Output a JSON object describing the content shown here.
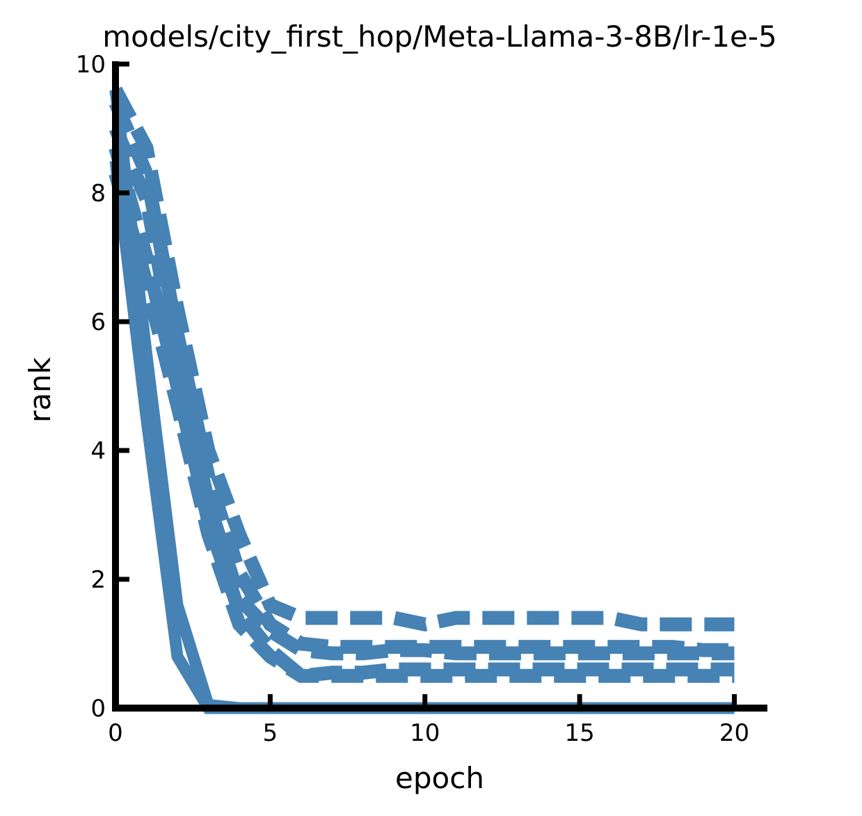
{
  "chart_data": {
    "type": "line",
    "title": "models/city_first_hop/Meta-Llama-3-8B/lr-1e-5",
    "xlabel": "epoch",
    "ylabel": "rank",
    "xlim": [
      0,
      21
    ],
    "ylim": [
      0,
      10
    ],
    "xticks": [
      "0",
      "5",
      "10",
      "15",
      "20"
    ],
    "yticks": [
      "0",
      "2",
      "4",
      "6",
      "8",
      "10"
    ],
    "grid": false,
    "legend": "none",
    "color": "#4682b4",
    "x": [
      0,
      1,
      2,
      3,
      4,
      5,
      6,
      7,
      8,
      9,
      10,
      11,
      12,
      13,
      14,
      15,
      16,
      17,
      18,
      19,
      20
    ],
    "series": [
      {
        "style": "solid",
        "values": [
          9.6,
          5.5,
          1.6,
          0.05,
          0,
          0,
          0,
          0,
          0,
          0,
          0,
          0,
          0,
          0,
          0,
          0,
          0,
          0,
          0,
          0,
          0
        ]
      },
      {
        "style": "solid",
        "values": [
          8.5,
          4.5,
          0.8,
          0,
          0,
          0,
          0,
          0,
          0,
          0,
          0,
          0,
          0,
          0,
          0,
          0,
          0,
          0,
          0,
          0,
          0
        ]
      },
      {
        "style": "dashed",
        "values": [
          9.6,
          8.7,
          6.2,
          4.0,
          2.7,
          1.6,
          1.4,
          1.4,
          1.4,
          1.4,
          1.3,
          1.4,
          1.4,
          1.4,
          1.4,
          1.4,
          1.4,
          1.3,
          1.3,
          1.3,
          1.3
        ]
      },
      {
        "style": "dashed",
        "values": [
          9.4,
          8.3,
          5.8,
          3.6,
          2.1,
          1.3,
          1.0,
          0.95,
          0.95,
          0.95,
          0.95,
          0.95,
          0.95,
          0.95,
          0.95,
          0.95,
          0.95,
          0.95,
          0.95,
          0.9,
          0.9
        ]
      },
      {
        "style": "dashed",
        "values": [
          9.0,
          7.9,
          5.3,
          3.2,
          1.7,
          1.2,
          0.9,
          0.85,
          0.85,
          0.9,
          0.9,
          0.85,
          0.85,
          0.85,
          0.85,
          0.85,
          0.85,
          0.85,
          0.85,
          0.85,
          0.85
        ]
      },
      {
        "style": "dashed",
        "values": [
          8.7,
          7.0,
          5.0,
          2.9,
          1.5,
          0.9,
          0.5,
          0.55,
          0.55,
          0.6,
          0.6,
          0.6,
          0.6,
          0.6,
          0.6,
          0.6,
          0.6,
          0.6,
          0.6,
          0.6,
          0.6
        ]
      },
      {
        "style": "dashed",
        "values": [
          8.3,
          6.6,
          4.7,
          2.7,
          1.3,
          0.8,
          0.5,
          0.5,
          0.5,
          0.5,
          0.5,
          0.5,
          0.5,
          0.5,
          0.5,
          0.5,
          0.5,
          0.5,
          0.5,
          0.5,
          0.5
        ]
      }
    ]
  }
}
